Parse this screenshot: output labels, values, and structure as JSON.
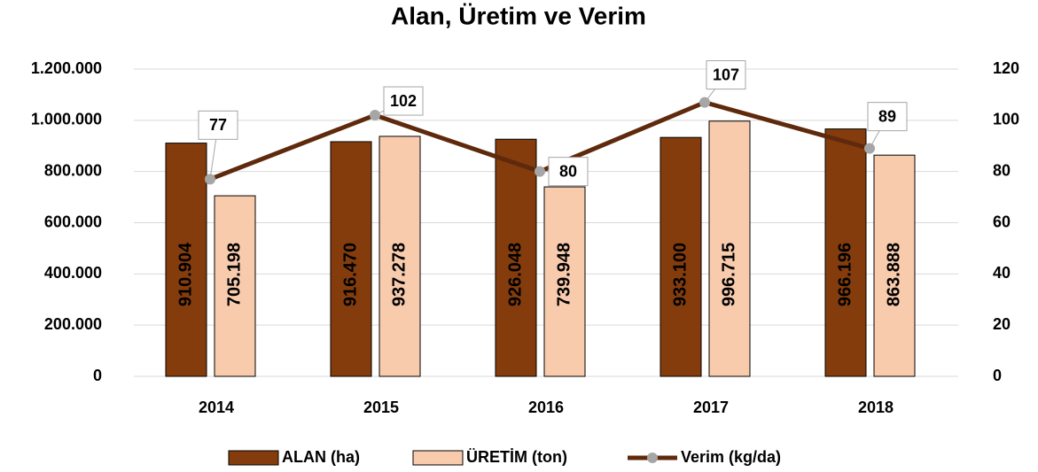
{
  "chart_data": {
    "type": "bar",
    "title": "Alan, Üretim ve Verim",
    "categories": [
      "2014",
      "2015",
      "2016",
      "2017",
      "2018"
    ],
    "series": [
      {
        "name": "ALAN (ha)",
        "color": "#843c0c",
        "values": [
          910904,
          916470,
          926048,
          933100,
          966196
        ],
        "value_labels": [
          "910.904",
          "916.470",
          "926.048",
          "933.100",
          "966.196"
        ]
      },
      {
        "name": "ÜRETİM (ton)",
        "color": "#f8cbad",
        "values": [
          705198,
          937278,
          739948,
          996715,
          863888
        ],
        "value_labels": [
          "705.198",
          "937.278",
          "739.948",
          "996.715",
          "863.888"
        ]
      },
      {
        "name": "Verim (kg/da)",
        "type": "line",
        "axis": "y2",
        "color": "#5f2a0c",
        "marker_color": "#a6a6a6",
        "values": [
          77,
          102,
          80,
          107,
          89
        ]
      }
    ],
    "ylim": [
      0,
      1200000
    ],
    "yticks": [
      0,
      {
        "value": 200000,
        "label": "200.000"
      },
      {
        "value": 400000,
        "label": "400.000"
      },
      {
        "value": 600000,
        "label": "600.000"
      },
      {
        "value": 800000,
        "label": "800.000"
      },
      {
        "value": 1000000,
        "label": "1.000.000"
      },
      {
        "value": 1200000,
        "label": "1.200.000"
      }
    ],
    "y2lim": [
      0,
      120
    ],
    "y2ticks": [
      0,
      20,
      40,
      60,
      80,
      100,
      120
    ],
    "grid": true,
    "legend": "bottom"
  }
}
